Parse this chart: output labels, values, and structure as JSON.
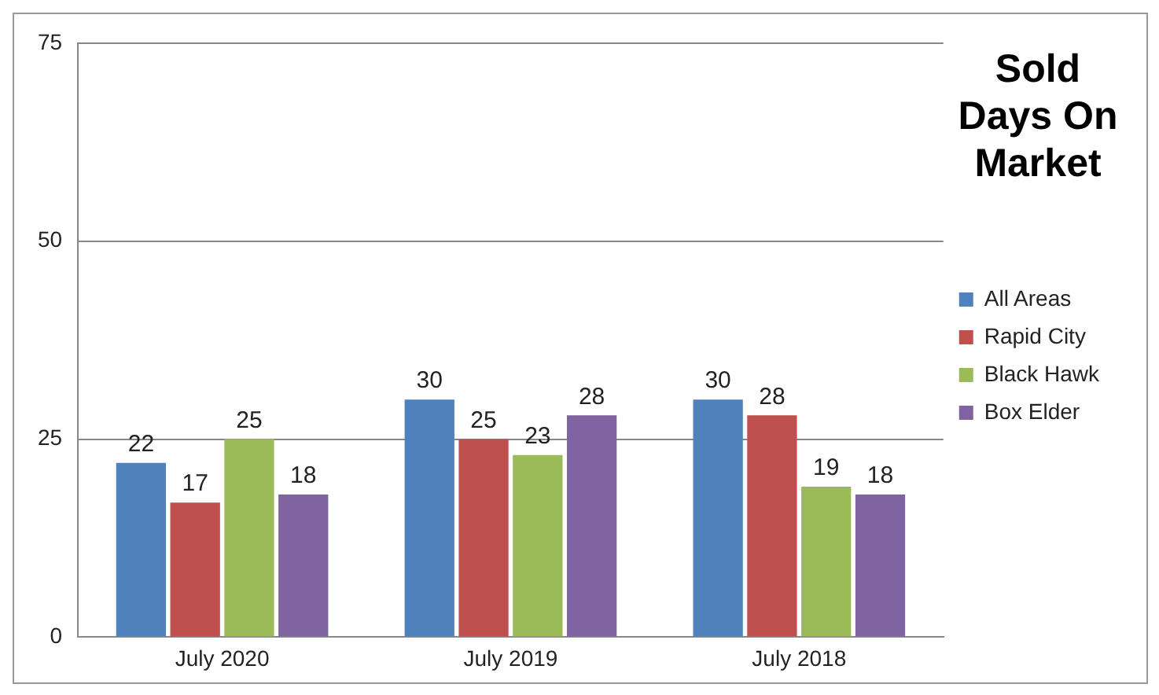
{
  "chart_data": {
    "type": "bar",
    "title": "Sold Days On Market",
    "categories": [
      "July 2020",
      "July 2019",
      "July 2018"
    ],
    "series": [
      {
        "name": "All Areas",
        "color": "#4f81bd",
        "values": [
          22,
          30,
          30
        ]
      },
      {
        "name": "Rapid City",
        "color": "#c0504d",
        "values": [
          17,
          25,
          28
        ]
      },
      {
        "name": "Black Hawk",
        "color": "#9bbb59",
        "values": [
          25,
          23,
          19
        ]
      },
      {
        "name": "Box Elder",
        "color": "#8064a2",
        "values": [
          18,
          28,
          18
        ]
      }
    ],
    "ylim": [
      0,
      75
    ],
    "yticks": [
      0,
      25,
      50,
      75
    ],
    "grid": "y",
    "legend": "right",
    "data_labels": true
  }
}
